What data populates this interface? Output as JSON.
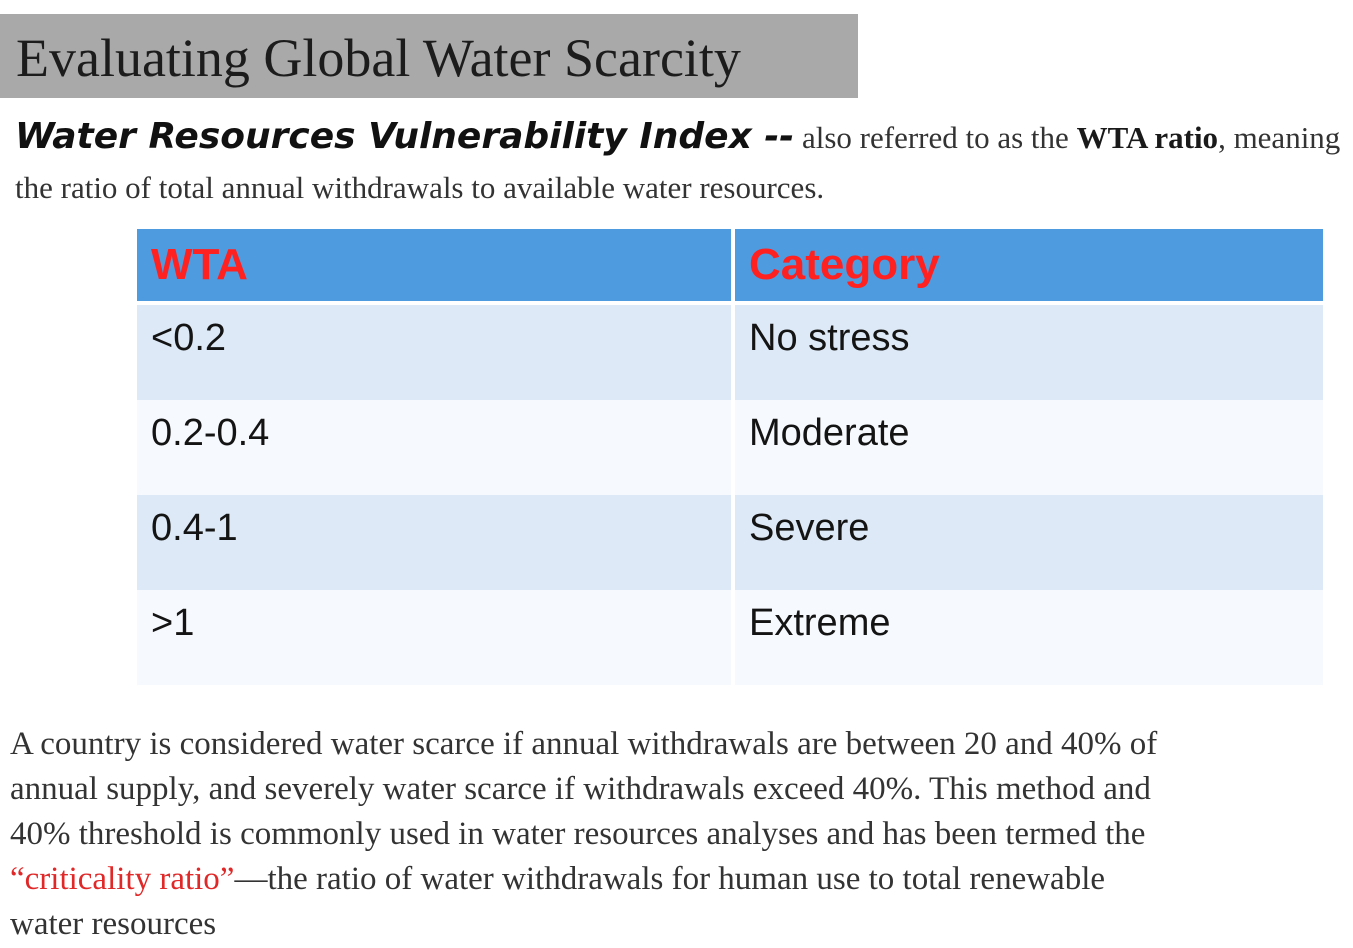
{
  "slide": {
    "title": "Evaluating Global Water Scarcity",
    "intro": {
      "index_name": "Water Resources Vulnerability Index --",
      "text_1": " also referred to as the ",
      "wta_label": "WTA ratio",
      "text_2": ", meaning the ratio of total annual withdrawals to available water resources."
    },
    "table": {
      "headers": [
        "WTA",
        "Category"
      ],
      "rows": [
        {
          "wta": "<0.2",
          "category": "No stress"
        },
        {
          "wta": "0.2-0.4",
          "category": "Moderate"
        },
        {
          "wta": "0.4-1",
          "category": "Severe"
        },
        {
          "wta": ">1",
          "category": "Extreme"
        }
      ]
    },
    "footer": {
      "text_1": "A country is considered water scarce if annual withdrawals are between 20 and 40% of annual supply, and severely water scarce if withdrawals exceed 40%. This method and 40% threshold is commonly used in water resources analyses and has been termed the ",
      "highlight": "“criticality ratio”",
      "text_2": "—the ratio of water withdrawals for human use to total renewable water resources"
    },
    "colors": {
      "title_bar": "#a9a9a9",
      "table_header": "#4f9be0",
      "header_text": "#ff2020",
      "row_odd": "#dde9f6",
      "row_even": "#f6f9fd",
      "highlight_text": "#e02828"
    }
  }
}
